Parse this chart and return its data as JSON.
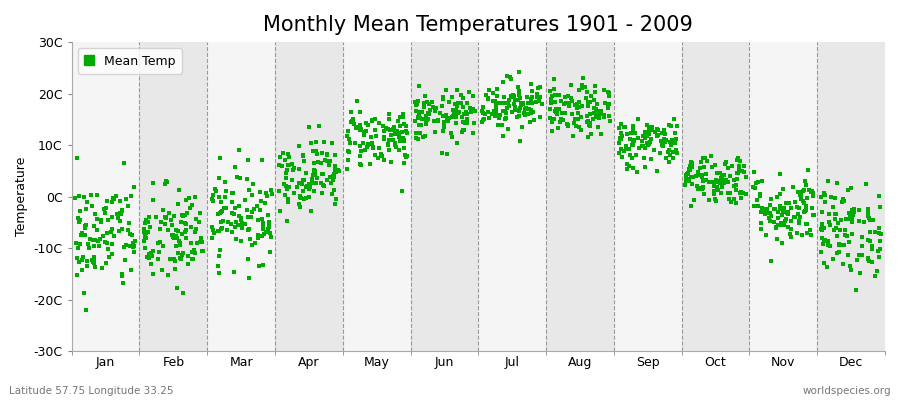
{
  "title": "Monthly Mean Temperatures 1901 - 2009",
  "ylabel": "Temperature",
  "xlabel_labels": [
    "Jan",
    "Feb",
    "Mar",
    "Apr",
    "May",
    "Jun",
    "Jul",
    "Aug",
    "Sep",
    "Oct",
    "Nov",
    "Dec"
  ],
  "yticks": [
    -30,
    -20,
    -10,
    0,
    10,
    20,
    30
  ],
  "ytick_labels": [
    "-30C",
    "-20C",
    "-10C",
    "0C",
    "10C",
    "20C",
    "30C"
  ],
  "ylim": [
    -30,
    30
  ],
  "dot_color": "#00AA00",
  "fig_bg_color": "#FFFFFF",
  "plot_bg_color": "#EBEBEB",
  "band_light": "#F5F5F5",
  "band_dark": "#E8E8E8",
  "title_fontsize": 15,
  "label_fontsize": 9,
  "tick_fontsize": 9,
  "footer_left": "Latitude 57.75 Longitude 33.25",
  "footer_right": "worldspecies.org",
  "legend_label": "Mean Temp",
  "monthly_means": [
    -7.5,
    -8.0,
    -3.5,
    4.5,
    11.5,
    15.5,
    18.0,
    16.5,
    10.5,
    3.5,
    -2.5,
    -6.5
  ],
  "monthly_stds": [
    5.5,
    5.0,
    4.5,
    3.5,
    3.0,
    2.5,
    2.5,
    2.5,
    2.5,
    2.5,
    3.5,
    4.5
  ],
  "n_years": 109,
  "seed": 42,
  "n_months": 12
}
